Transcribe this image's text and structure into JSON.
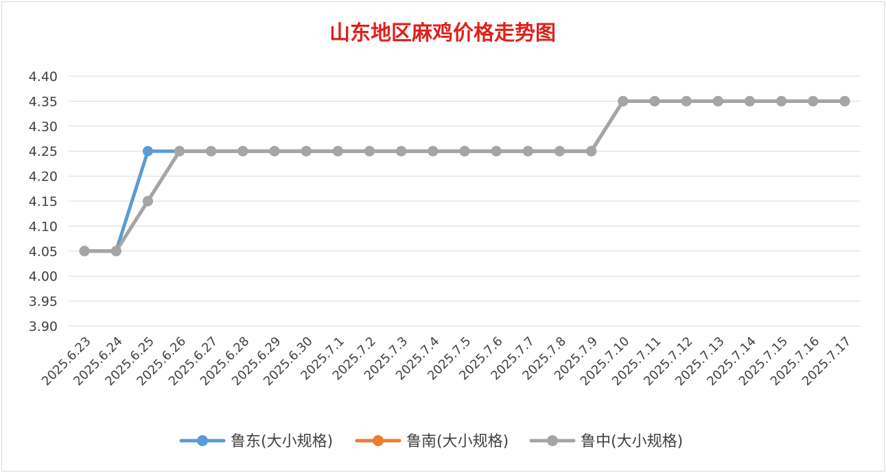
{
  "chart_data": {
    "type": "line",
    "title": "山东地区麻鸡价格走势图",
    "xlabel": "",
    "ylabel": "",
    "ylim": [
      3.9,
      4.4
    ],
    "yticks": [
      "4.40",
      "4.35",
      "4.30",
      "4.25",
      "4.20",
      "4.15",
      "4.10",
      "4.05",
      "4.00",
      "3.95",
      "3.90"
    ],
    "categories": [
      "2025.6.23",
      "2025.6.24",
      "2025.6.25",
      "2025.6.26",
      "2025.6.27",
      "2025.6.28",
      "2025.6.29",
      "2025.6.30",
      "2025.7.1",
      "2025.7.2",
      "2025.7.3",
      "2025.7.4",
      "2025.7.5",
      "2025.7.6",
      "2025.7.7",
      "2025.7.8",
      "2025.7.9",
      "2025.7.10",
      "2025.7.11",
      "2025.7.12",
      "2025.7.13",
      "2025.7.14",
      "2025.7.15",
      "2025.7.16",
      "2025.7.17"
    ],
    "grid": true,
    "legend": "bottom",
    "series": [
      {
        "name": "鲁东(大小规格)",
        "color": "#5b9bd5",
        "values": [
          4.05,
          4.05,
          4.25,
          4.25,
          4.25,
          4.25,
          4.25,
          4.25,
          4.25,
          4.25,
          4.25,
          4.25,
          4.25,
          4.25,
          4.25,
          4.25,
          4.25,
          4.35,
          4.35,
          4.35,
          4.35,
          4.35,
          4.35,
          4.35,
          4.35
        ]
      },
      {
        "name": "鲁南(大小规格)",
        "color": "#ed7d31",
        "values": [
          4.05,
          4.05,
          4.15,
          4.25,
          4.25,
          4.25,
          4.25,
          4.25,
          4.25,
          4.25,
          4.25,
          4.25,
          4.25,
          4.25,
          4.25,
          4.25,
          4.25,
          4.35,
          4.35,
          4.35,
          4.35,
          4.35,
          4.35,
          4.35,
          4.35
        ]
      },
      {
        "name": "鲁中(大小规格)",
        "color": "#a5a5a5",
        "values": [
          4.05,
          4.05,
          4.15,
          4.25,
          4.25,
          4.25,
          4.25,
          4.25,
          4.25,
          4.25,
          4.25,
          4.25,
          4.25,
          4.25,
          4.25,
          4.25,
          4.25,
          4.35,
          4.35,
          4.35,
          4.35,
          4.35,
          4.35,
          4.35,
          4.35
        ]
      }
    ]
  }
}
